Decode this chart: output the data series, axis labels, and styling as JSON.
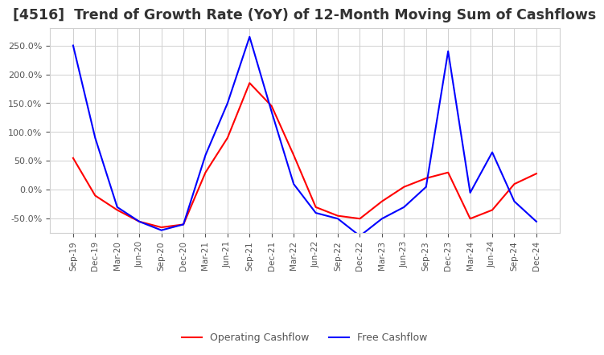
{
  "title": "[4516]  Trend of Growth Rate (YoY) of 12-Month Moving Sum of Cashflows",
  "title_fontsize": 12.5,
  "x_labels": [
    "Sep-19",
    "Dec-19",
    "Mar-20",
    "Jun-20",
    "Sep-20",
    "Dec-20",
    "Mar-21",
    "Jun-21",
    "Sep-21",
    "Dec-21",
    "Mar-22",
    "Jun-22",
    "Sep-22",
    "Dec-22",
    "Mar-23",
    "Jun-23",
    "Sep-23",
    "Dec-23",
    "Mar-24",
    "Jun-24",
    "Sep-24",
    "Dec-24"
  ],
  "operating_cashflow": [
    55,
    -10,
    -35,
    -55,
    -65,
    -60,
    30,
    90,
    185,
    145,
    60,
    -30,
    -45,
    -50,
    -20,
    5,
    20,
    30,
    -50,
    -35,
    10,
    28
  ],
  "free_cashflow": [
    250,
    90,
    -30,
    -55,
    -70,
    -60,
    60,
    150,
    265,
    135,
    10,
    -40,
    -50,
    -80,
    -50,
    -30,
    5,
    240,
    -5,
    65,
    -20,
    -55
  ],
  "ylim": [
    -75,
    280
  ],
  "yticks": [
    -50,
    0,
    50,
    100,
    150,
    200,
    250
  ],
  "operating_color": "#ff0000",
  "free_color": "#0000ff",
  "grid_color": "#d0d0d0",
  "background_color": "#ffffff",
  "title_color": "#333333",
  "tick_color": "#555555"
}
